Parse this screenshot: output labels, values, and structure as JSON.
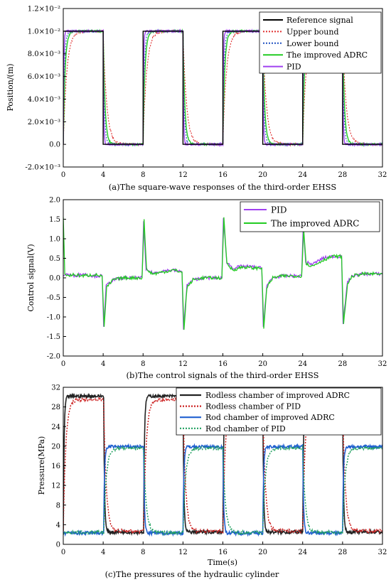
{
  "colors": {
    "reference": "#000000",
    "upper": "#e03030",
    "lower": "#2050c0",
    "adrc": "#22cc22",
    "pid": "#a040f0",
    "rodless_adrc": "#222222",
    "rodless_pid": "#cc2222",
    "rod_adrc": "#2060d0",
    "rod_pid": "#20a060"
  },
  "chart_data": [
    {
      "type": "line",
      "caption": "(a)The square-wave responses of the third-order EHSS",
      "xlabel": "",
      "ylabel": "Position/(m)",
      "xlim": [
        0,
        32
      ],
      "ylim": [
        -0.002,
        0.012
      ],
      "xticks": [
        "0",
        "4",
        "8",
        "12",
        "16",
        "20",
        "24",
        "28",
        "32"
      ],
      "yticks": [
        "-2.0×10⁻³",
        "0.0",
        "2.0×10⁻³",
        "4.0×10⁻³",
        "6.0×10⁻³",
        "8.0×10⁻³",
        "1.0×10⁻²",
        "1.2×10⁻²"
      ],
      "ytick_values": [
        -0.002,
        0,
        0.002,
        0.004,
        0.006,
        0.008,
        0.01,
        0.012
      ],
      "legend_position": "top-right",
      "square_wave": {
        "high": 0.01,
        "low": 0.0,
        "rise_times": [
          0,
          8,
          16,
          24
        ],
        "fall_times": [
          4,
          12,
          20,
          28
        ]
      },
      "series": [
        {
          "name": "Reference signal",
          "values_desc": "square wave 0 / 0.01, period 8 s"
        },
        {
          "name": "Upper bound",
          "values_desc": "envelope above reference"
        },
        {
          "name": "Lower bound",
          "values_desc": "envelope below reference"
        },
        {
          "name": "The improved ADRC",
          "values_desc": "tracks reference with fast transition"
        },
        {
          "name": "PID",
          "values_desc": "tracks reference with fast transition"
        }
      ]
    },
    {
      "type": "line",
      "caption": "(b)The control signals of the third-order EHSS",
      "xlabel": "",
      "ylabel": "Control signal(V)",
      "xlim": [
        0,
        32
      ],
      "ylim": [
        -2.0,
        2.0
      ],
      "xticks": [
        "0",
        "4",
        "8",
        "12",
        "16",
        "20",
        "24",
        "28",
        "32"
      ],
      "yticks": [
        "-2.0",
        "-1.5",
        "-1.0",
        "-0.5",
        "0.0",
        "0.5",
        "1.0",
        "1.5",
        "2.0"
      ],
      "ytick_values": [
        -2.0,
        -1.5,
        -1.0,
        -0.5,
        0.0,
        0.5,
        1.0,
        1.5,
        2.0
      ],
      "legend_position": "top-right",
      "series": [
        {
          "name": "PID",
          "points": [
            [
              0,
              0.05
            ],
            [
              0.3,
              0.1
            ],
            [
              1,
              0.05
            ],
            [
              2,
              0.1
            ],
            [
              3,
              0.05
            ],
            [
              3.9,
              0.05
            ],
            [
              4.05,
              -1.25
            ],
            [
              4.3,
              -0.2
            ],
            [
              5,
              -0.05
            ],
            [
              6,
              0.0
            ],
            [
              7,
              0.0
            ],
            [
              7.9,
              0.0
            ],
            [
              8.05,
              1.45
            ],
            [
              8.3,
              0.2
            ],
            [
              9,
              0.12
            ],
            [
              10,
              0.18
            ],
            [
              11,
              0.2
            ],
            [
              11.9,
              0.15
            ],
            [
              12.05,
              -1.3
            ],
            [
              12.4,
              -0.2
            ],
            [
              13,
              -0.05
            ],
            [
              14,
              0.0
            ],
            [
              15,
              0.0
            ],
            [
              15.9,
              0.0
            ],
            [
              16.05,
              1.5
            ],
            [
              16.4,
              0.4
            ],
            [
              17,
              0.25
            ],
            [
              18,
              0.3
            ],
            [
              19,
              0.28
            ],
            [
              19.9,
              0.25
            ],
            [
              20.05,
              -1.25
            ],
            [
              20.4,
              -0.2
            ],
            [
              21,
              0.0
            ],
            [
              22,
              0.05
            ],
            [
              23,
              0.05
            ],
            [
              23.9,
              0.05
            ],
            [
              24.05,
              1.35
            ],
            [
              24.3,
              0.4
            ],
            [
              25,
              0.35
            ],
            [
              26,
              0.5
            ],
            [
              27,
              0.55
            ],
            [
              27.9,
              0.55
            ],
            [
              28.05,
              -1.15
            ],
            [
              28.5,
              -0.1
            ],
            [
              29,
              0.05
            ],
            [
              30,
              0.1
            ],
            [
              31,
              0.1
            ],
            [
              32,
              0.1
            ]
          ]
        },
        {
          "name": "The improved ADRC",
          "points": [
            [
              0,
              1.55
            ],
            [
              0.15,
              0.1
            ],
            [
              0.5,
              0.05
            ],
            [
              1,
              0.08
            ],
            [
              2,
              0.05
            ],
            [
              3,
              0.08
            ],
            [
              3.9,
              0.05
            ],
            [
              4.1,
              -1.25
            ],
            [
              4.35,
              -0.25
            ],
            [
              5,
              -0.05
            ],
            [
              6,
              0.0
            ],
            [
              7,
              0.0
            ],
            [
              7.9,
              0.0
            ],
            [
              8.1,
              1.5
            ],
            [
              8.35,
              0.2
            ],
            [
              9,
              0.1
            ],
            [
              10,
              0.15
            ],
            [
              11,
              0.2
            ],
            [
              11.9,
              0.15
            ],
            [
              12.1,
              -1.35
            ],
            [
              12.4,
              -0.25
            ],
            [
              13,
              -0.05
            ],
            [
              14,
              0.0
            ],
            [
              15,
              0.0
            ],
            [
              15.9,
              0.0
            ],
            [
              16.1,
              1.55
            ],
            [
              16.4,
              0.35
            ],
            [
              17,
              0.2
            ],
            [
              18,
              0.28
            ],
            [
              19,
              0.25
            ],
            [
              19.9,
              0.25
            ],
            [
              20.1,
              -1.3
            ],
            [
              20.4,
              -0.25
            ],
            [
              21,
              0.0
            ],
            [
              22,
              0.05
            ],
            [
              23,
              0.05
            ],
            [
              23.9,
              0.05
            ],
            [
              24.1,
              1.25
            ],
            [
              24.35,
              0.35
            ],
            [
              25,
              0.3
            ],
            [
              26,
              0.45
            ],
            [
              27,
              0.55
            ],
            [
              27.9,
              0.55
            ],
            [
              28.1,
              -1.2
            ],
            [
              28.5,
              -0.15
            ],
            [
              29,
              0.05
            ],
            [
              30,
              0.1
            ],
            [
              31,
              0.1
            ],
            [
              32,
              0.1
            ]
          ]
        }
      ]
    },
    {
      "type": "line",
      "caption": "(c)The pressures of the hydraulic cylinder",
      "xlabel": "Time(s)",
      "ylabel": "Pressure(MPa)",
      "xlim": [
        0,
        32
      ],
      "ylim": [
        0,
        32
      ],
      "xticks": [
        "0",
        "4",
        "8",
        "12",
        "16",
        "20",
        "24",
        "28",
        "32"
      ],
      "yticks": [
        "0",
        "4",
        "8",
        "12",
        "16",
        "20",
        "24",
        "28",
        "32"
      ],
      "ytick_values": [
        0,
        4,
        8,
        12,
        16,
        20,
        24,
        28,
        32
      ],
      "legend_position": "top-right",
      "series": [
        {
          "name": "Rodless chamber of improved ADRC",
          "high": 30.2,
          "low": 2.5,
          "high_intervals": [
            [
              0,
              4
            ],
            [
              8,
              12
            ],
            [
              16,
              20
            ],
            [
              24,
              28
            ]
          ]
        },
        {
          "name": "Rodless chamber of PID",
          "high": 29.5,
          "low": 2.7,
          "high_intervals": [
            [
              0,
              4
            ],
            [
              8,
              12
            ],
            [
              16,
              20
            ],
            [
              24,
              28
            ]
          ]
        },
        {
          "name": "Rod chamber of improved ADRC",
          "high": 19.9,
          "low": 2.3,
          "high_intervals": [
            [
              4,
              8
            ],
            [
              12,
              16
            ],
            [
              20,
              24
            ],
            [
              28,
              32
            ]
          ]
        },
        {
          "name": "Rod chamber of PID",
          "high": 19.6,
          "low": 2.4,
          "high_intervals": [
            [
              4,
              8
            ],
            [
              12,
              16
            ],
            [
              20,
              24
            ],
            [
              28,
              32
            ]
          ]
        }
      ]
    }
  ]
}
